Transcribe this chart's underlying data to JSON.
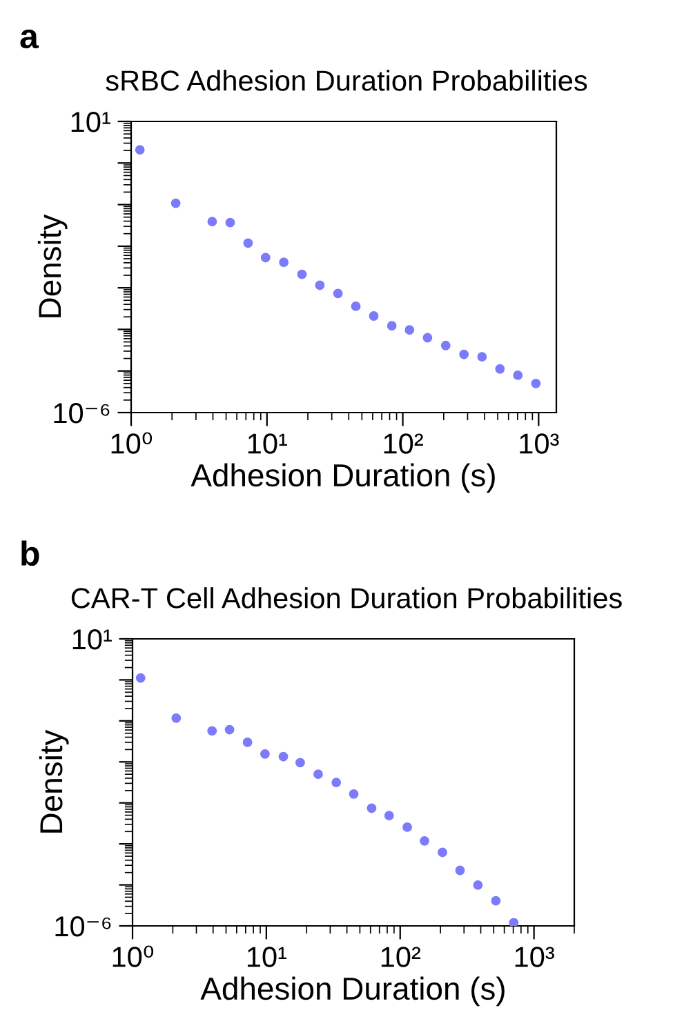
{
  "chart_data": [
    {
      "type": "scatter",
      "title": "sRBC Adhesion Duration Probabilities",
      "xlabel": "Adhesion Duration (s)",
      "ylabel": "Density",
      "annotations": [
        "a"
      ],
      "log": "xy",
      "marker": "circle",
      "legend": false,
      "xlim": [
        1,
        1350
      ],
      "ylim": [
        1e-06,
        10
      ],
      "xticks": [
        {
          "value": 1,
          "label": "10⁰"
        },
        {
          "value": 10,
          "label": "10¹"
        },
        {
          "value": 100,
          "label": "10²"
        },
        {
          "value": 1000,
          "label": "10³"
        }
      ],
      "yticks": [
        {
          "value": 1e-06,
          "label": "10⁻⁶"
        },
        {
          "value": 1e-05,
          "label": null
        },
        {
          "value": 0.0001,
          "label": null
        },
        {
          "value": 0.001,
          "label": null
        },
        {
          "value": 0.01,
          "label": null
        },
        {
          "value": 0.1,
          "label": null
        },
        {
          "value": 1,
          "label": null
        },
        {
          "value": 10,
          "label": "10¹"
        }
      ],
      "series": [
        {
          "color": "#7b7bfb",
          "x": [
            1.16,
            2.13,
            3.95,
            5.36,
            7.26,
            9.77,
            13.3,
            18.1,
            24.5,
            33.3,
            45.1,
            61.1,
            83,
            112,
            152,
            207,
            282,
            383,
            519,
            703,
            955
          ],
          "values": [
            2.07,
            0.108,
            0.039,
            0.037,
            0.0119,
            0.0053,
            0.0041,
            0.0021,
            0.00115,
            0.00073,
            0.00036,
            0.00021,
            0.000122,
            9.7e-05,
            6.3e-05,
            4.1e-05,
            2.5e-05,
            2.2e-05,
            1.12e-05,
            7.9e-06,
            5e-06
          ]
        }
      ]
    },
    {
      "type": "scatter",
      "title": "CAR-T Cell Adhesion Duration Probabilities",
      "xlabel": "Adhesion Duration (s)",
      "ylabel": "Density",
      "annotations": [
        "b"
      ],
      "log": "xy",
      "marker": "circle",
      "legend": false,
      "xlim": [
        1,
        2000
      ],
      "ylim": [
        1e-06,
        10
      ],
      "xticks": [
        {
          "value": 1,
          "label": "10⁰"
        },
        {
          "value": 10,
          "label": "10¹"
        },
        {
          "value": 100,
          "label": "10²"
        },
        {
          "value": 1000,
          "label": "10³"
        }
      ],
      "yticks": [
        {
          "value": 1e-06,
          "label": "10⁻⁶"
        },
        {
          "value": 1e-05,
          "label": null
        },
        {
          "value": 0.0001,
          "label": null
        },
        {
          "value": 0.001,
          "label": null
        },
        {
          "value": 0.01,
          "label": null
        },
        {
          "value": 0.1,
          "label": null
        },
        {
          "value": 1,
          "label": null
        },
        {
          "value": 10,
          "label": "10¹"
        }
      ],
      "series": [
        {
          "color": "#7b7bfb",
          "x": [
            1.15,
            2.12,
            3.93,
            5.31,
            7.23,
            9.77,
            13.4,
            17.9,
            24.4,
            33.3,
            45,
            61.2,
            82.7,
            113,
            152,
            207,
            280,
            381,
            519,
            706
          ],
          "values": [
            1.11,
            0.117,
            0.057,
            0.061,
            0.03,
            0.0156,
            0.0134,
            0.0096,
            0.005,
            0.00315,
            0.00165,
            0.00074,
            0.00049,
            0.000256,
            0.000118,
            6.2e-05,
            2.26e-05,
            9.9e-06,
            4.1e-06,
            1.2e-06
          ]
        }
      ]
    }
  ]
}
